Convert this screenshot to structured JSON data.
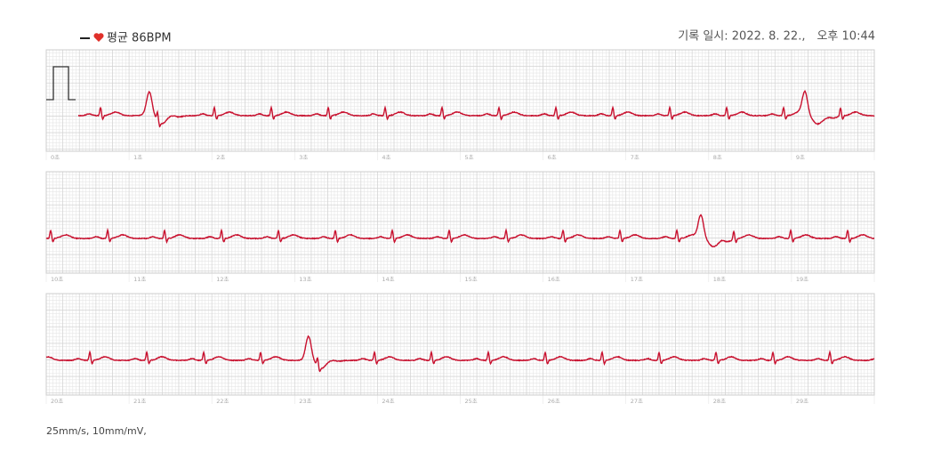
{
  "header": {
    "legend": "평균 86BPM",
    "record": "기록 일시: 2022. 8. 22.,　오후 10:44"
  },
  "strips": [
    {
      "labels": [
        "0초",
        "1초",
        "2초",
        "3초",
        "4초",
        "5초",
        "6초",
        "7초",
        "8초",
        "9초"
      ]
    },
    {
      "labels": [
        "10초",
        "11초",
        "12초",
        "13초",
        "14초",
        "15초",
        "16초",
        "17초",
        "18초",
        "19초"
      ]
    },
    {
      "labels": [
        "20초",
        "21초",
        "22초",
        "23초",
        "24초",
        "25초",
        "26초",
        "27초",
        "28초",
        "29초"
      ]
    }
  ],
  "footer": "25mm/s, 10mm/mV,"
}
